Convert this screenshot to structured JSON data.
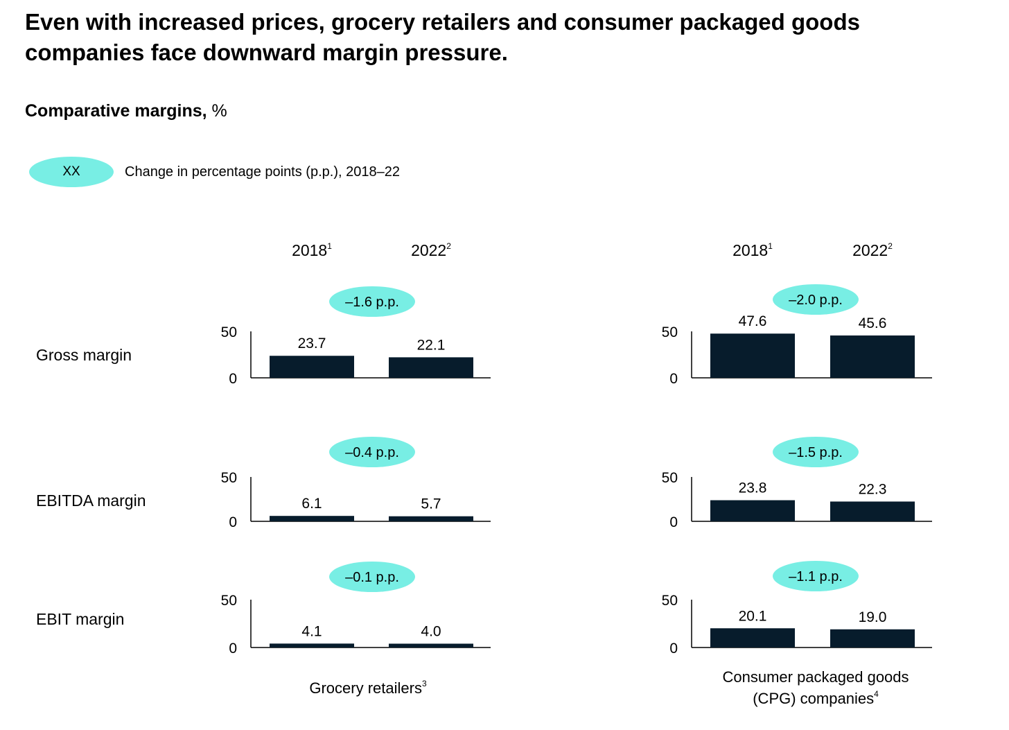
{
  "header": {
    "title": "Even with increased prices, grocery retailers and consumer packaged goods companies face downward margin pressure.",
    "subtitle_bold": "Comparative margins,",
    "subtitle_unit": "%"
  },
  "legend": {
    "pill_label": "XX",
    "text": "Change in percentage points (p.p.), 2018–22",
    "color": "#78eee4"
  },
  "colors": {
    "bar": "#071c2c",
    "pill": "#78eee4",
    "axis": "#000000"
  },
  "chart_data": {
    "type": "bar",
    "categories": [
      "2018",
      "2022"
    ],
    "category_footnotes": [
      "1",
      "2"
    ],
    "ylim": [
      0,
      50
    ],
    "yticks": [
      0,
      50
    ],
    "rows": [
      "Gross margin",
      "EBITDA margin",
      "EBIT margin"
    ],
    "columns": [
      {
        "label": "Grocery retailers",
        "footnote": "3",
        "panels": [
          {
            "row": "Gross margin",
            "values": [
              23.7,
              22.1
            ],
            "value_labels": [
              "23.7",
              "22.1"
            ],
            "change": "–1.6 p.p."
          },
          {
            "row": "EBITDA margin",
            "values": [
              6.1,
              5.7
            ],
            "value_labels": [
              "6.1",
              "5.7"
            ],
            "change": "–0.4 p.p."
          },
          {
            "row": "EBIT margin",
            "values": [
              4.1,
              4.0
            ],
            "value_labels": [
              "4.1",
              "4.0"
            ],
            "change": "–0.1 p.p."
          }
        ]
      },
      {
        "label": "Consumer packaged goods (CPG) companies",
        "label_lines": [
          "Consumer packaged goods",
          "(CPG) companies"
        ],
        "footnote": "4",
        "panels": [
          {
            "row": "Gross margin",
            "values": [
              47.6,
              45.6
            ],
            "value_labels": [
              "47.6",
              "45.6"
            ],
            "change": "–2.0 p.p."
          },
          {
            "row": "EBITDA margin",
            "values": [
              23.8,
              22.3
            ],
            "value_labels": [
              "23.8",
              "22.3"
            ],
            "change": "–1.5 p.p."
          },
          {
            "row": "EBIT margin",
            "values": [
              20.1,
              19.0
            ],
            "value_labels": [
              "20.1",
              "19.0"
            ],
            "change": "–1.1 p.p."
          }
        ]
      }
    ]
  }
}
